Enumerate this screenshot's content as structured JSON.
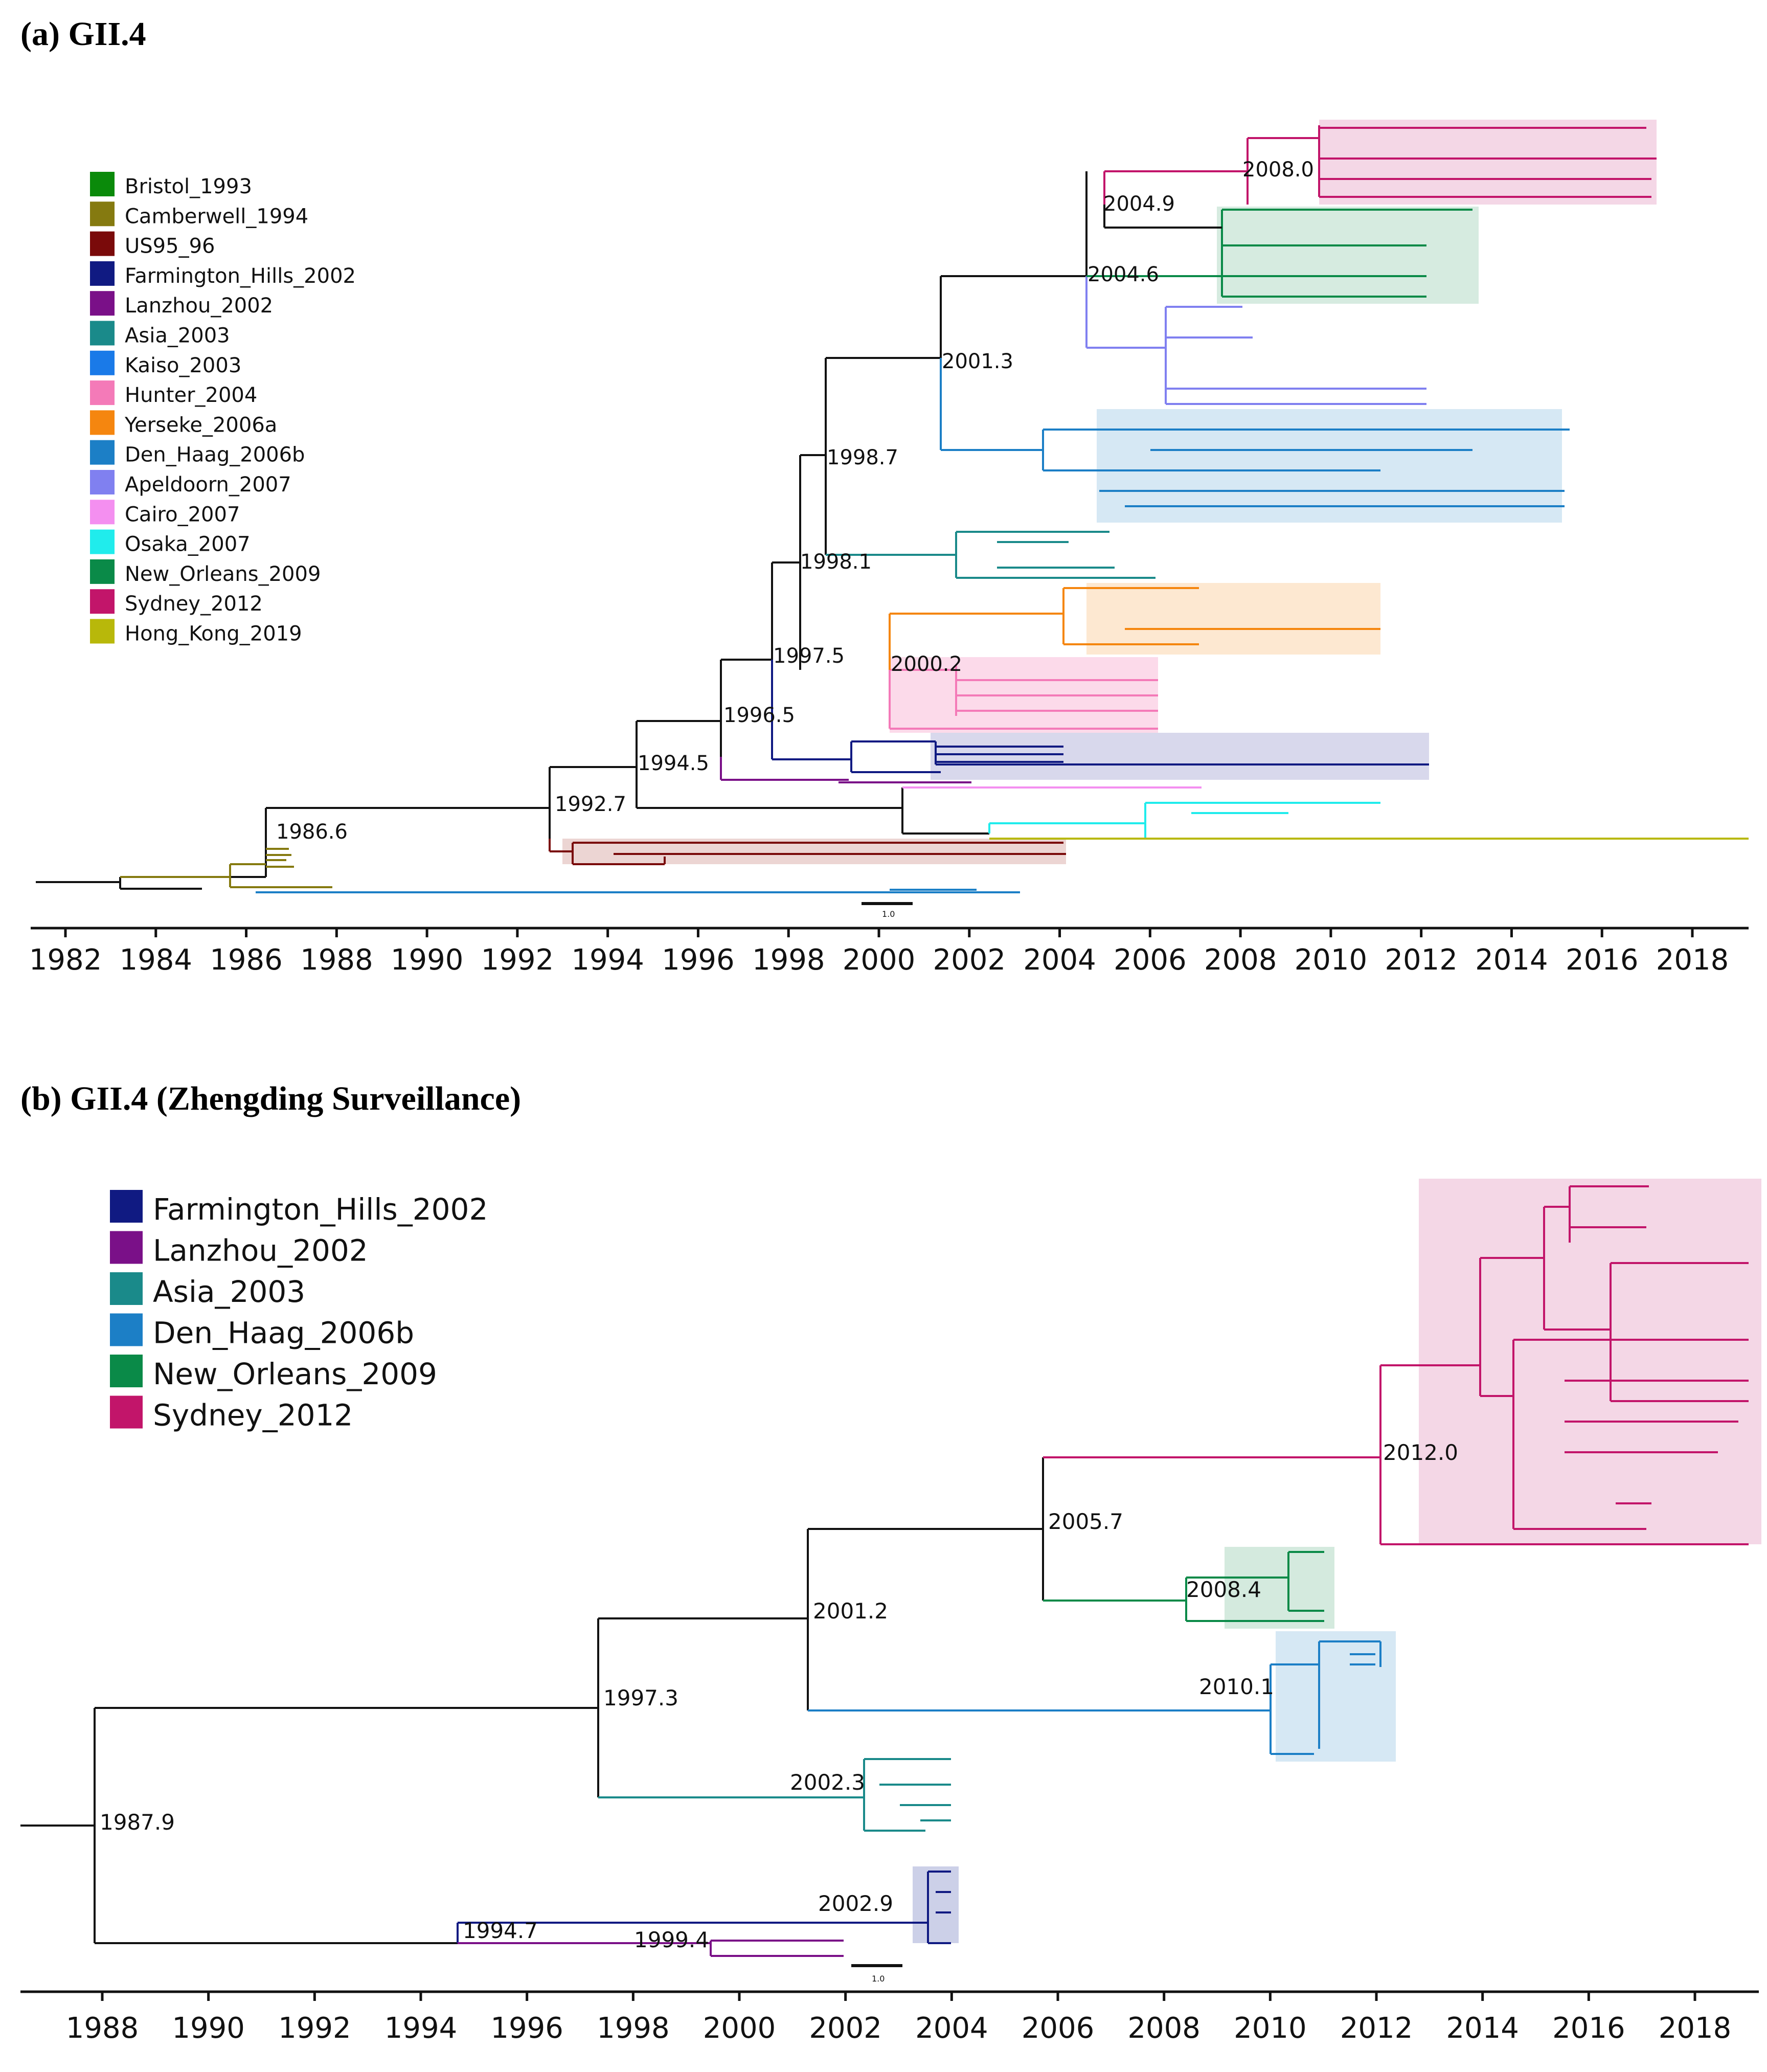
{
  "panels": [
    {
      "id": "a",
      "title": "(a) GII.4",
      "legend": [
        {
          "label": "Bristol_1993",
          "color": "#0a8a0a"
        },
        {
          "label": "Camberwell_1994",
          "color": "#857a10"
        },
        {
          "label": "US95_96",
          "color": "#7a0a0a"
        },
        {
          "label": "Farmington_Hills_2002",
          "color": "#101a82"
        },
        {
          "label": "Lanzhou_2002",
          "color": "#7a1088"
        },
        {
          "label": "Asia_2003",
          "color": "#1a8a8a"
        },
        {
          "label": "Kaiso_2003",
          "color": "#1a7ae8"
        },
        {
          "label": "Hunter_2004",
          "color": "#f47ab8"
        },
        {
          "label": "Yerseke_2006a",
          "color": "#f5860f"
        },
        {
          "label": "Den_Haag_2006b",
          "color": "#1c7fc6"
        },
        {
          "label": "Apeldoorn_2007",
          "color": "#8080f0"
        },
        {
          "label": "Cairo_2007",
          "color": "#f48ff0"
        },
        {
          "label": "Osaka_2007",
          "color": "#20ecec"
        },
        {
          "label": "New_Orleans_2009",
          "color": "#0a8a48"
        },
        {
          "label": "Sydney_2012",
          "color": "#c2156a"
        },
        {
          "label": "Hong_Kong_2019",
          "color": "#b8b80a"
        }
      ],
      "node_labels": [
        "1986.6",
        "1992.7",
        "1994.5",
        "1996.5",
        "1997.5",
        "1998.1",
        "1998.7",
        "2000.2",
        "2001.3",
        "2004.6",
        "2004.9",
        "2008.0"
      ],
      "axis_years": [
        "1982",
        "1984",
        "1986",
        "1988",
        "1990",
        "1992",
        "1994",
        "1996",
        "1998",
        "2000",
        "2002",
        "2004",
        "2006",
        "2008",
        "2010",
        "2012",
        "2014",
        "2016",
        "2018"
      ],
      "scale_label": "1.0"
    },
    {
      "id": "b",
      "title": "(b) GII.4 (Zhengding Surveillance)",
      "legend": [
        {
          "label": "Farmington_Hills_2002",
          "color": "#101a82"
        },
        {
          "label": "Lanzhou_2002",
          "color": "#7a1088"
        },
        {
          "label": "Asia_2003",
          "color": "#1a8a8a"
        },
        {
          "label": "Den_Haag_2006b",
          "color": "#1c7fc6"
        },
        {
          "label": "New_Orleans_2009",
          "color": "#0a8a48"
        },
        {
          "label": "Sydney_2012",
          "color": "#c2156a"
        }
      ],
      "node_labels": [
        "1987.9",
        "1994.7",
        "1997.3",
        "1999.4",
        "2001.2",
        "2002.3",
        "2002.9",
        "2005.7",
        "2008.4",
        "2010.1",
        "2012.0"
      ],
      "axis_years": [
        "1988",
        "1990",
        "1992",
        "1994",
        "1996",
        "1998",
        "2000",
        "2002",
        "2004",
        "2006",
        "2008",
        "2010",
        "2012",
        "2014",
        "2016",
        "2018"
      ],
      "scale_label": "1.0"
    }
  ]
}
